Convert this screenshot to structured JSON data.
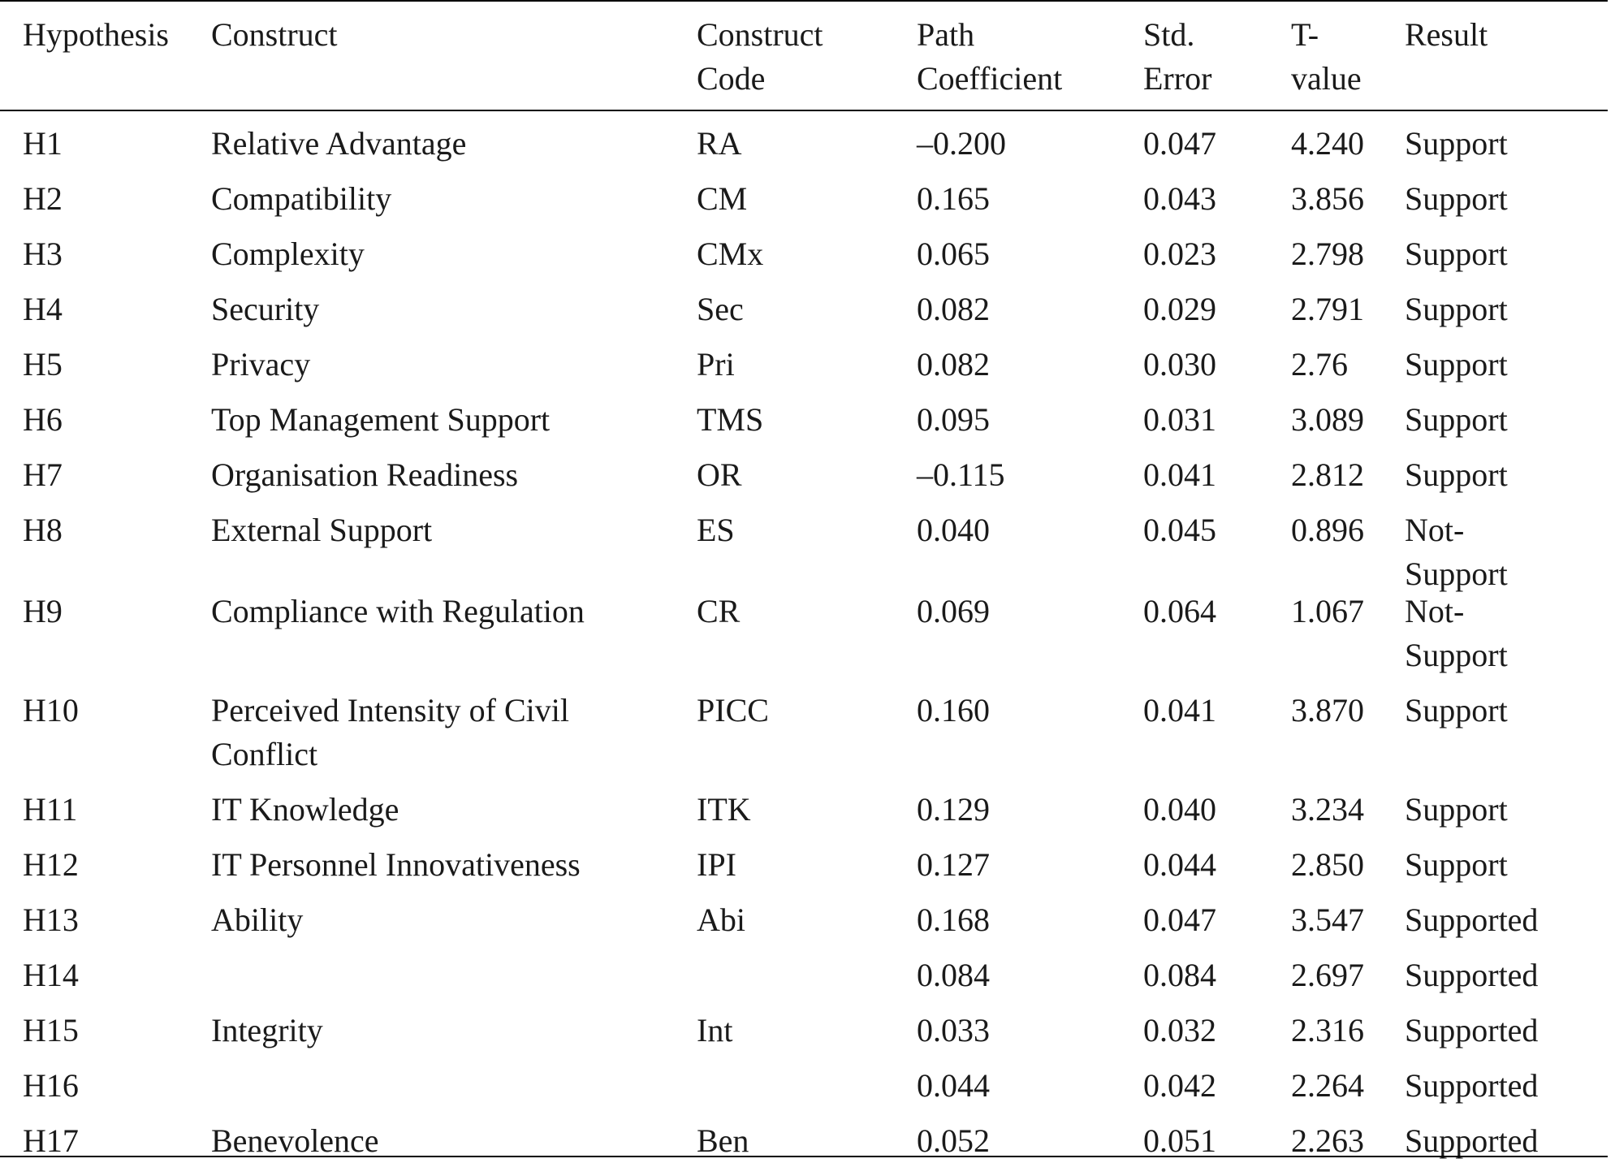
{
  "table": {
    "headers": {
      "hypothesis": "Hypothesis",
      "construct": "Construct",
      "construct_code": [
        "Construct",
        "Code"
      ],
      "path_coefficient": [
        "Path",
        "Coefficient"
      ],
      "std_error": [
        "Std.",
        "Error"
      ],
      "t_value": [
        "T-",
        "value"
      ],
      "result": "Result"
    },
    "rows": [
      {
        "hypothesis": "H1",
        "construct": "Relative Advantage",
        "code": "RA",
        "path": "–0.200",
        "se": "0.047",
        "t": "4.240",
        "result": "Support"
      },
      {
        "hypothesis": "H2",
        "construct": "Compatibility",
        "code": "CM",
        "path": "0.165",
        "se": "0.043",
        "t": "3.856",
        "result": "Support"
      },
      {
        "hypothesis": "H3",
        "construct": "Complexity",
        "code": "CMx",
        "path": "0.065",
        "se": "0.023",
        "t": "2.798",
        "result": "Support"
      },
      {
        "hypothesis": "H4",
        "construct": "Security",
        "code": "Sec",
        "path": "0.082",
        "se": "0.029",
        "t": "2.791",
        "result": "Support"
      },
      {
        "hypothesis": "H5",
        "construct": "Privacy",
        "code": "Pri",
        "path": "0.082",
        "se": "0.030",
        "t": "2.76",
        "result": "Support"
      },
      {
        "hypothesis": "H6",
        "construct": "Top Management Support",
        "code": "TMS",
        "path": "0.095",
        "se": "0.031",
        "t": "3.089",
        "result": "Support"
      },
      {
        "hypothesis": "H7",
        "construct": "Organisation Readiness",
        "code": "OR",
        "path": "–0.115",
        "se": "0.041",
        "t": "2.812",
        "result": "Support"
      },
      {
        "hypothesis": "H8",
        "construct": "External Support",
        "code": "ES",
        "path": "0.040",
        "se": "0.045",
        "t": "0.896",
        "result": [
          "Not-",
          "Support"
        ]
      },
      {
        "hypothesis": "H9",
        "construct": "Compliance with Regulation",
        "code": "CR",
        "path": "0.069",
        "se": "0.064",
        "t": "1.067",
        "result": [
          "Not-",
          "Support"
        ]
      },
      {
        "hypothesis": "H10",
        "construct": [
          "Perceived Intensity of Civil",
          "Conflict"
        ],
        "code": "PICC",
        "path": "0.160",
        "se": "0.041",
        "t": "3.870",
        "result": "Support"
      },
      {
        "hypothesis": "H11",
        "construct": "IT Knowledge",
        "code": "ITK",
        "path": "0.129",
        "se": "0.040",
        "t": "3.234",
        "result": "Support"
      },
      {
        "hypothesis": "H12",
        "construct": "IT Personnel Innovativeness",
        "code": "IPI",
        "path": "0.127",
        "se": "0.044",
        "t": "2.850",
        "result": "Support"
      },
      {
        "hypothesis": "H13",
        "construct": "Ability",
        "code": "Abi",
        "path": "0.168",
        "se": "0.047",
        "t": "3.547",
        "result": "Supported"
      },
      {
        "hypothesis": "H14",
        "construct": "",
        "code": "",
        "path": "0.084",
        "se": "0.084",
        "t": "2.697",
        "result": "Supported"
      },
      {
        "hypothesis": "H15",
        "construct": "Integrity",
        "code": "Int",
        "path": "0.033",
        "se": "0.032",
        "t": "2.316",
        "result": "Supported"
      },
      {
        "hypothesis": "H16",
        "construct": "",
        "code": "",
        "path": "0.044",
        "se": "0.042",
        "t": "2.264",
        "result": "Supported"
      },
      {
        "hypothesis": "H17",
        "construct": "Benevolence",
        "code": "Ben",
        "path": "0.052",
        "se": "0.051",
        "t": "2.263",
        "result": "Supported"
      }
    ]
  }
}
